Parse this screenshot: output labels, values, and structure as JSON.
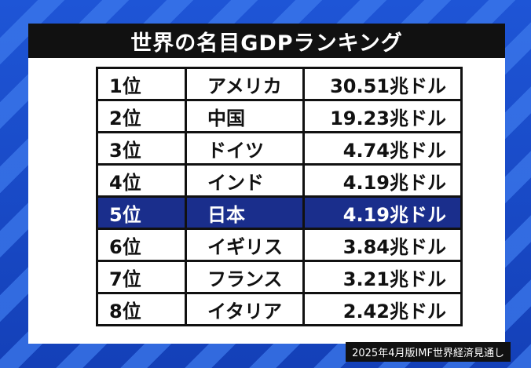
{
  "title": "世界の名目GDPランキング",
  "rows": [
    {
      "rank": "1位",
      "country": "アメリカ",
      "value": "30.51兆ドル"
    },
    {
      "rank": "2位",
      "country": "中国",
      "value": "19.23兆ドル"
    },
    {
      "rank": "3位",
      "country": "ドイツ",
      "value": "4.74兆ドル"
    },
    {
      "rank": "4位",
      "country": "インド",
      "value": "4.19兆ドル"
    },
    {
      "rank": "5位",
      "country": "日本",
      "value": "4.19兆ドル"
    },
    {
      "rank": "6位",
      "country": "イギリス",
      "value": "3.84兆ドル"
    },
    {
      "rank": "7位",
      "country": "フランス",
      "value": "3.21兆ドル"
    },
    {
      "rank": "8位",
      "country": "イタリア",
      "value": "2.42兆ドル"
    }
  ],
  "highlight_row_color": "#1a2e8c",
  "source": "2025年4月版IMF世界経済見通し"
}
